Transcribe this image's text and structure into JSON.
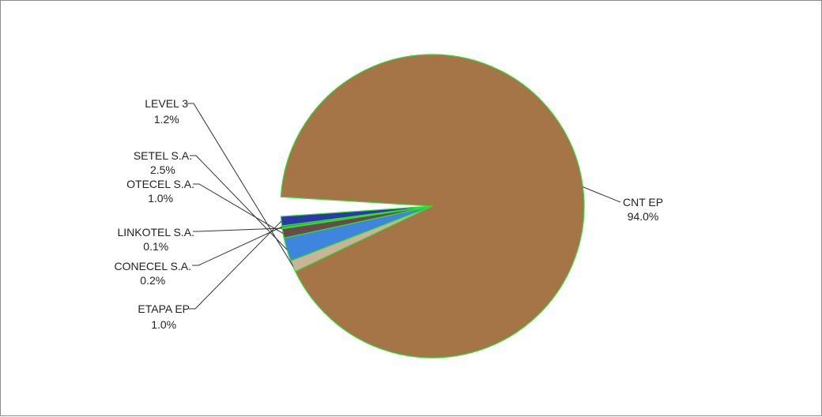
{
  "chart_data": {
    "type": "pie",
    "slices": [
      {
        "label": "CNT EP",
        "value": 94.0,
        "value_text": "94.0%",
        "color": "#a57447"
      },
      {
        "label": "ETAPA EP",
        "value": 1.0,
        "value_text": "1.0%",
        "color": "#2b39a8"
      },
      {
        "label": "CONECEL S.A.",
        "value": 0.2,
        "value_text": "0.2%",
        "color": "#3d8a6e"
      },
      {
        "label": "LINKOTEL S.A.",
        "value": 0.1,
        "value_text": "0.1%",
        "color": "#7fc7c0"
      },
      {
        "label": "OTECEL S.A.",
        "value": 1.0,
        "value_text": "1.0%",
        "color": "#6b4a4a"
      },
      {
        "label": "SETEL S.A.",
        "value": 2.5,
        "value_text": "2.5%",
        "color": "#3e86dd"
      },
      {
        "label": "LEVEL 3",
        "value": 1.2,
        "value_text": "1.2%",
        "color": "#c9b49a"
      }
    ],
    "border_color": "#33dd33",
    "legend": "none",
    "labels": "outside-with-leader-lines"
  }
}
